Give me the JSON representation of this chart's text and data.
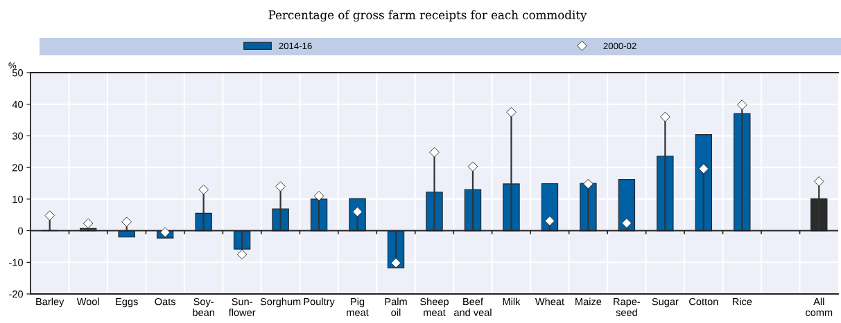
{
  "chart_data": {
    "type": "bar",
    "subtitle": "Percentage of gross farm receipts for each commodity",
    "ylabel": "%",
    "categories": [
      "Barley",
      "Wool",
      "Eggs",
      "Oats",
      "Soy-\nbean",
      "Sun-\nflower",
      "Sorghum",
      "Poultry",
      "Pig\nmeat",
      "Palm\noil",
      "Sheep\nmeat",
      "Beef\nand veal",
      "Milk",
      "Wheat",
      "Maize",
      "Rape-\nseed",
      "Sugar",
      "Cotton",
      "Rice",
      null,
      "All\ncomm"
    ],
    "series": [
      {
        "name": "2014-16",
        "type": "bar",
        "color": "#0060a4",
        "colors": [
          "#0060a4",
          "#0060a4",
          "#0060a4",
          "#0060a4",
          "#0060a4",
          "#0060a4",
          "#0060a4",
          "#0060a4",
          "#0060a4",
          "#0060a4",
          "#0060a4",
          "#0060a4",
          "#0060a4",
          "#0060a4",
          "#0060a4",
          "#0060a4",
          "#0060a4",
          "#0060a4",
          "#0060a4",
          "#0060a4",
          "#2b2b2b"
        ],
        "values": [
          0.1,
          0.7,
          -2,
          -2.3,
          5.5,
          -5.8,
          6.9,
          10,
          10.2,
          -11.8,
          12.2,
          13,
          14.8,
          14.9,
          15,
          16.2,
          23.6,
          30.4,
          37,
          null,
          10.1
        ]
      },
      {
        "name": "2000-02",
        "type": "lollipop",
        "color": "#ffffff",
        "values": [
          4.8,
          2.3,
          2.8,
          -0.5,
          13,
          -7.5,
          14,
          11,
          6,
          -10.2,
          24.8,
          20.3,
          37.5,
          3.1,
          14.8,
          2.4,
          36,
          19.6,
          39.8,
          null,
          15.6
        ]
      }
    ],
    "ylim": [
      -20,
      50
    ],
    "yticks": [
      -20,
      -10,
      0,
      10,
      20,
      30,
      40,
      50
    ],
    "grid": true,
    "legend": "top",
    "marker": "diamond"
  }
}
